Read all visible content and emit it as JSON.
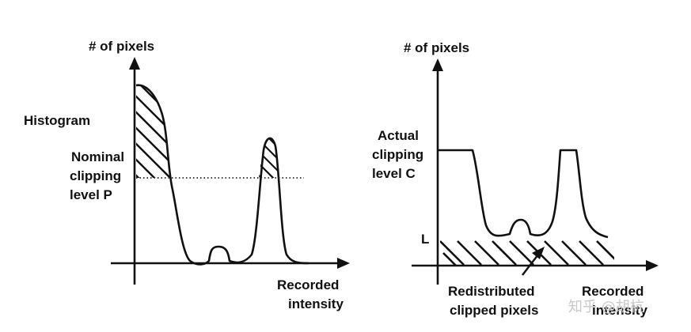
{
  "left_panel": {
    "y_axis_label": "# of pixels",
    "histogram_label": "Histogram",
    "nominal_label": [
      "Nominal",
      "clipping",
      "level P"
    ],
    "x_axis_label": [
      "Recorded",
      "intensity"
    ]
  },
  "right_panel": {
    "y_axis_label": "# of pixels",
    "actual_label": [
      "Actual",
      "clipping",
      "level C"
    ],
    "l_label": "L",
    "redistributed_label": [
      "Redistributed",
      "clipped pixels"
    ],
    "x_axis_label": [
      "Recorded",
      "intensity"
    ]
  },
  "watermark": "知乎 @胡杭",
  "colors": {
    "ink": "#111111",
    "background": "#ffffff",
    "watermark": "#c9c9c9"
  }
}
